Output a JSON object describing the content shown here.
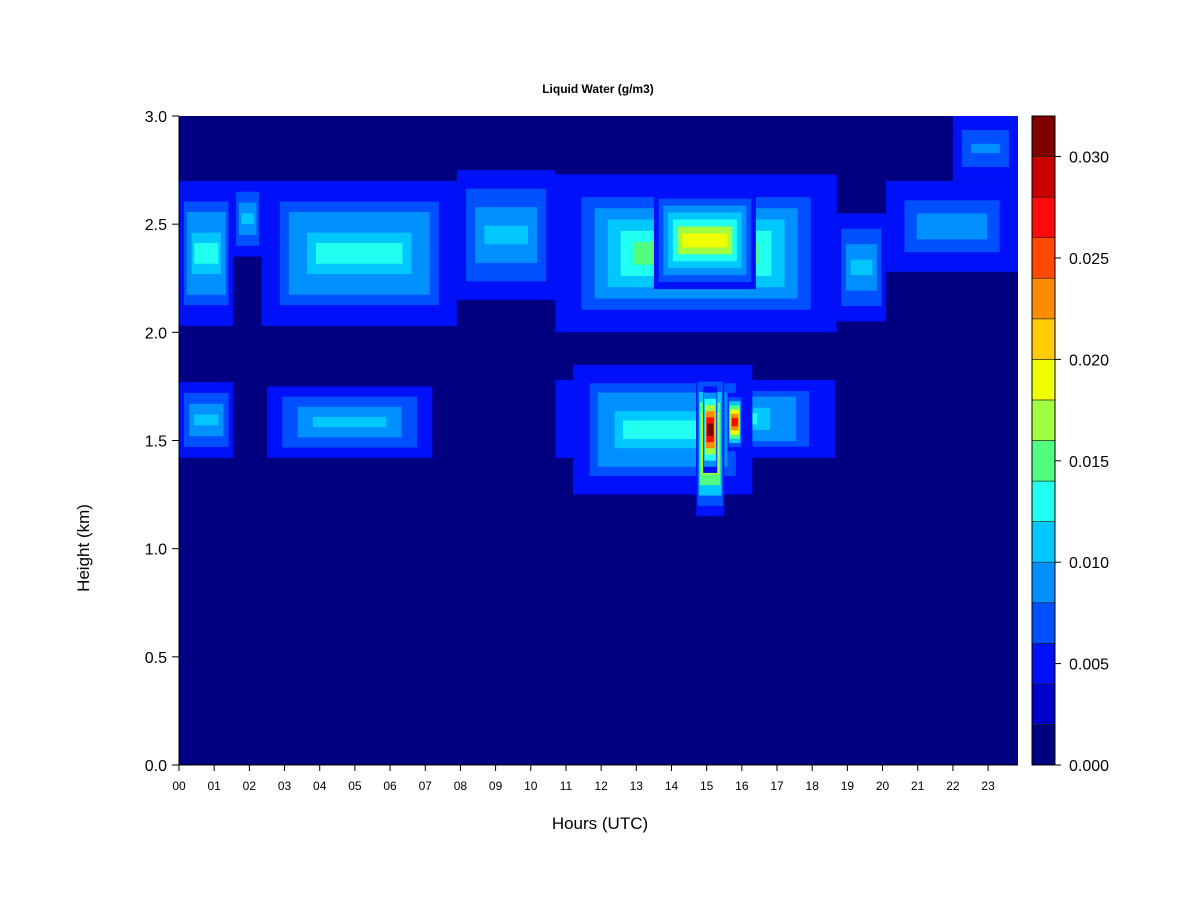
{
  "chart_data": {
    "type": "heatmap",
    "title": "Liquid Water (g/m3)",
    "xlabel": "Hours (UTC)",
    "ylabel": "Height (km)",
    "xlim": [
      0,
      23.85
    ],
    "ylim": [
      0,
      3.0
    ],
    "x_ticks": [
      {
        "value": 0,
        "label": "00"
      },
      {
        "value": 1,
        "label": "01"
      },
      {
        "value": 2,
        "label": "02"
      },
      {
        "value": 3,
        "label": "03"
      },
      {
        "value": 4,
        "label": "04"
      },
      {
        "value": 5,
        "label": "05"
      },
      {
        "value": 6,
        "label": "06"
      },
      {
        "value": 7,
        "label": "07"
      },
      {
        "value": 8,
        "label": "08"
      },
      {
        "value": 9,
        "label": "09"
      },
      {
        "value": 10,
        "label": "10"
      },
      {
        "value": 11,
        "label": "11"
      },
      {
        "value": 12,
        "label": "12"
      },
      {
        "value": 13,
        "label": "13"
      },
      {
        "value": 14,
        "label": "14"
      },
      {
        "value": 15,
        "label": "15"
      },
      {
        "value": 16,
        "label": "16"
      },
      {
        "value": 17,
        "label": "17"
      },
      {
        "value": 18,
        "label": "18"
      },
      {
        "value": 19,
        "label": "19"
      },
      {
        "value": 20,
        "label": "20"
      },
      {
        "value": 21,
        "label": "21"
      },
      {
        "value": 22,
        "label": "22"
      },
      {
        "value": 23,
        "label": "23"
      }
    ],
    "y_ticks": [
      {
        "value": 0.0,
        "label": "0.0"
      },
      {
        "value": 0.5,
        "label": "0.5"
      },
      {
        "value": 1.0,
        "label": "1.0"
      },
      {
        "value": 1.5,
        "label": "1.5"
      },
      {
        "value": 2.0,
        "label": "2.0"
      },
      {
        "value": 2.5,
        "label": "2.5"
      },
      {
        "value": 3.0,
        "label": "3.0"
      }
    ],
    "colorbar": {
      "min": 0.0,
      "max": 0.032,
      "ticks": [
        {
          "value": 0.0,
          "label": "0.000"
        },
        {
          "value": 0.005,
          "label": "0.005"
        },
        {
          "value": 0.01,
          "label": "0.010"
        },
        {
          "value": 0.015,
          "label": "0.015"
        },
        {
          "value": 0.02,
          "label": "0.020"
        },
        {
          "value": 0.025,
          "label": "0.025"
        },
        {
          "value": 0.03,
          "label": "0.030"
        }
      ],
      "colors": [
        "#000080",
        "#0000c8",
        "#0010f8",
        "#0050ff",
        "#0090ff",
        "#00c8ff",
        "#20fff0",
        "#50ff80",
        "#a0ff40",
        "#f0ff00",
        "#ffcc00",
        "#ff8c00",
        "#ff4a00",
        "#ff0a0a",
        "#c80000",
        "#800000"
      ]
    },
    "regions": [
      {
        "x0": 0.0,
        "x1": 1.55,
        "y0": 2.03,
        "y1": 2.7,
        "peak": 0.013
      },
      {
        "x0": 1.55,
        "x1": 2.35,
        "y0": 2.35,
        "y1": 2.7,
        "peak": 0.011
      },
      {
        "x0": 2.35,
        "x1": 7.9,
        "y0": 2.03,
        "y1": 2.7,
        "peak": 0.012
      },
      {
        "x0": 7.9,
        "x1": 10.7,
        "y0": 2.15,
        "y1": 2.75,
        "peak": 0.01
      },
      {
        "x0": 10.7,
        "x1": 18.7,
        "y0": 2.0,
        "y1": 2.73,
        "peak": 0.015
      },
      {
        "x0": 13.5,
        "x1": 16.4,
        "y0": 2.2,
        "y1": 2.65,
        "peak": 0.019
      },
      {
        "x0": 18.7,
        "x1": 20.1,
        "y0": 2.05,
        "y1": 2.55,
        "peak": 0.01
      },
      {
        "x0": 20.1,
        "x1": 23.85,
        "y0": 2.28,
        "y1": 2.7,
        "peak": 0.009
      },
      {
        "x0": 22.0,
        "x1": 23.85,
        "y0": 2.7,
        "y1": 3.0,
        "peak": 0.008
      },
      {
        "x0": 0.0,
        "x1": 1.55,
        "y0": 1.42,
        "y1": 1.77,
        "peak": 0.011
      },
      {
        "x0": 2.5,
        "x1": 7.2,
        "y0": 1.42,
        "y1": 1.75,
        "peak": 0.011
      },
      {
        "x0": 10.7,
        "x1": 18.65,
        "y0": 1.42,
        "y1": 1.78,
        "peak": 0.012
      },
      {
        "x0": 11.2,
        "x1": 16.3,
        "y0": 1.25,
        "y1": 1.85,
        "peak": 0.013
      },
      {
        "x0": 14.7,
        "x1": 15.5,
        "y0": 1.15,
        "y1": 1.82,
        "peak": 0.024
      },
      {
        "x0": 14.9,
        "x1": 15.3,
        "y0": 1.35,
        "y1": 1.75,
        "peak": 0.031
      },
      {
        "x0": 15.6,
        "x1": 16.0,
        "y0": 1.45,
        "y1": 1.72,
        "peak": 0.027
      }
    ]
  }
}
